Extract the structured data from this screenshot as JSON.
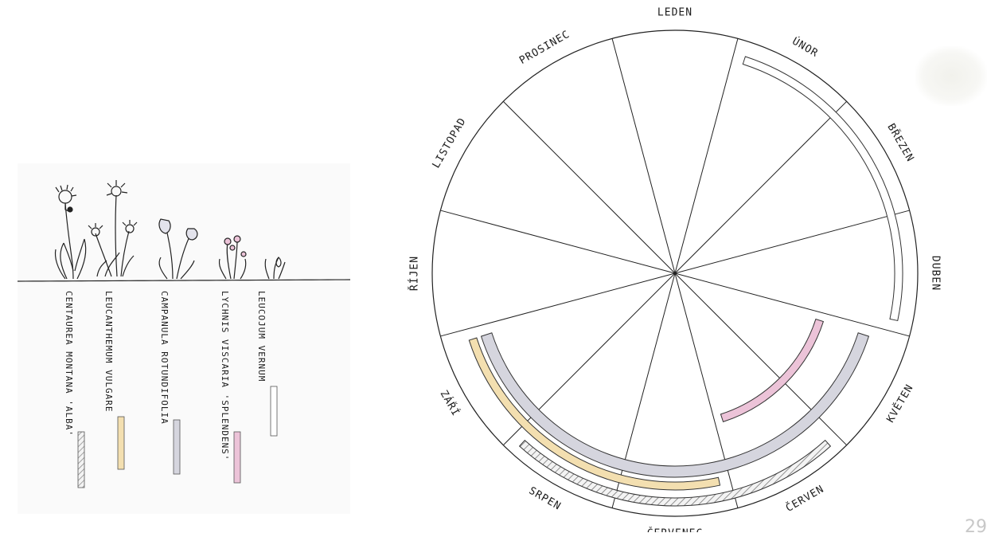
{
  "plants": [
    {
      "name": "CENTAUREA MONTANA 'ALBA'",
      "swatch": "#9a9a9a",
      "pattern": "hatched",
      "icon": "cornflower-icon"
    },
    {
      "name": "LEUCANTHEMUM VULGARE",
      "swatch": "#f3dfb0",
      "pattern": "solid",
      "icon": "daisy-icon"
    },
    {
      "name": "CAMPANULA ROTUNDIFOLIA",
      "swatch": "#d5d5de",
      "pattern": "solid",
      "icon": "harebell-icon"
    },
    {
      "name": "LYCHNIS VISCARIA 'SPLENDENS'",
      "swatch": "#ecc3d8",
      "pattern": "solid",
      "icon": "catchfly-icon"
    },
    {
      "name": "LEUCOJUM VERNUM",
      "swatch": "#ffffff",
      "pattern": "outline",
      "icon": "snowflake-flower-icon"
    }
  ],
  "months": [
    "LEDEN",
    "ÚNOR",
    "BŘEZEN",
    "DUBEN",
    "KVĚTEN",
    "ČERVEN",
    "ČERVENEC",
    "SRPEN",
    "ZÁŘÍ",
    "ŘÍJEN",
    "LISTOPAD",
    "PROSINEC"
  ],
  "bloom_periods": [
    {
      "plant": "LEUCOJUM VERNUM",
      "from": "ÚNOR",
      "to": "DUBEN",
      "color": "#ffffff"
    },
    {
      "plant": "LYCHNIS VISCARIA 'SPLENDENS'",
      "from": "KVĚTEN",
      "to": "ČERVEN",
      "color": "#ecc3d8"
    },
    {
      "plant": "CAMPANULA ROTUNDIFOLIA",
      "from": "KVĚTEN",
      "to": "ZÁŘÍ",
      "color": "#d5d5de"
    },
    {
      "plant": "CENTAUREA MONTANA 'ALBA'",
      "from": "ČERVEN",
      "to": "SRPEN",
      "color": "#9a9a9a"
    },
    {
      "plant": "LEUCANTHEMUM VULGARE",
      "from": "ČERVENEC",
      "to": "ZÁŘÍ",
      "color": "#f3dfb0"
    }
  ],
  "page_number": "29"
}
